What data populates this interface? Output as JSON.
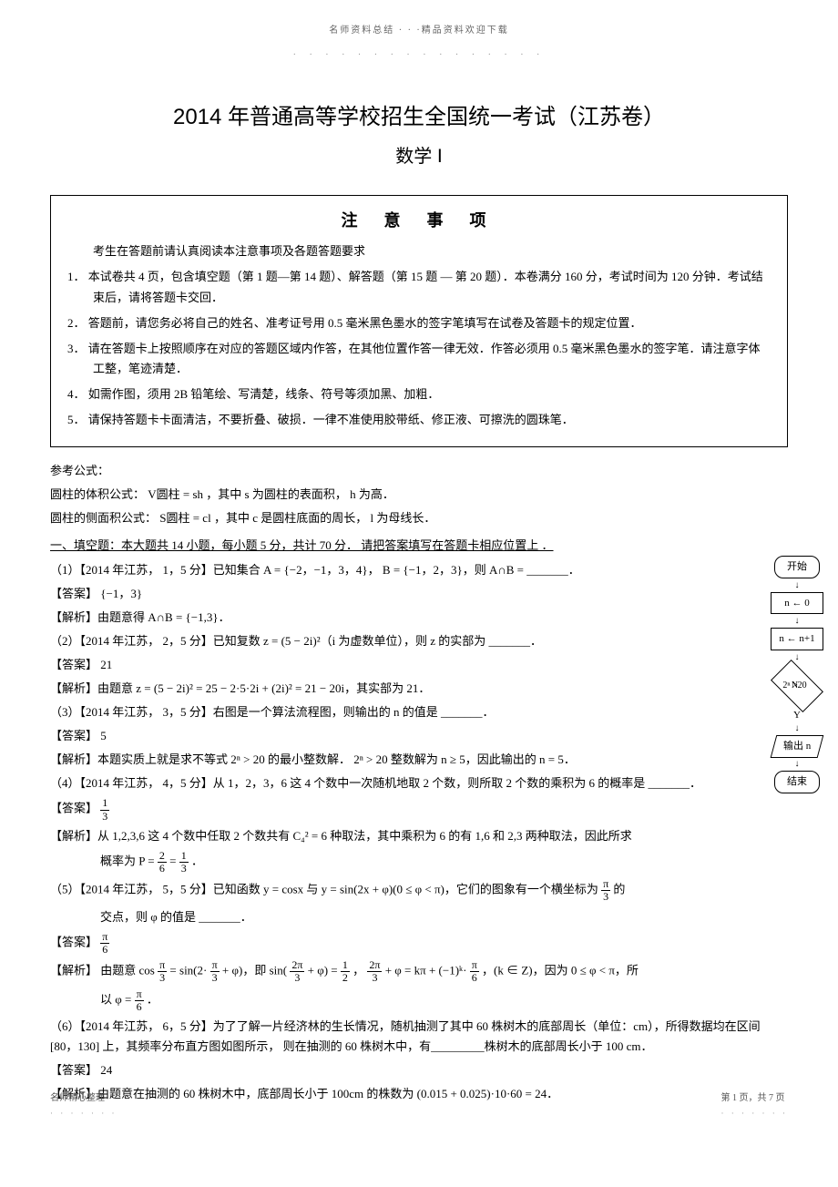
{
  "top_header": "名师资料总结 · · ·精品资料欢迎下载",
  "main_title": "2014 年普通高等学校招生全国统一考试（江苏卷）",
  "subtitle": "数学 Ⅰ",
  "notice": {
    "title": "注 意 事 项",
    "sub": "考生在答题前请认真阅读本注意事项及各题答题要求",
    "items": [
      "1． 本试卷共 4 页，包含填空题（第 1 题—第 14 题）、解答题（第 15 题 — 第 20 题）．本卷满分 160 分，考试时间为 120 分钟．考试结束后，请将答题卡交回．",
      "2． 答题前，请您务必将自己的姓名、准考证号用  0.5 毫米黑色墨水的签字笔填写在试卷及答题卡的规定位置．",
      "3． 请在答题卡上按照顺序在对应的答题区域内作答，在其他位置作答一律无效．作答必须用  0.5 毫米黑色墨水的签字笔．请注意字体工整，笔迹清楚．",
      "4． 如需作图，须用 2B 铅笔绘、写清楚，线条、符号等须加黑、加粗．",
      "5． 请保持答题卡卡面清洁，不要折叠、破损．一律不准使用胶带纸、修正液、可擦洗的圆珠笔．"
    ]
  },
  "formulas": {
    "header": "参考公式：",
    "line1": "圆柱的体积公式： V圆柱 = sh ，其中 s 为圆柱的表面积， h 为高．",
    "line2": "圆柱的侧面积公式： S圆柱 = cl ，其中 c 是圆柱底面的周长， l 为母线长．"
  },
  "section1": "一、填空题：本大题共 14 小题，每小题 5 分，共计 70 分． 请把答案填写在答题卡相应位置上 ．",
  "q1": {
    "text": "（1）【2014 年江苏， 1，5 分】已知集合 A = {−2，−1，3，4}， B = {−1，2，3}，则 A∩B = _______．",
    "answer_label": "【答案】",
    "answer": "{−1，3}",
    "analysis_label": "【解析】",
    "analysis": "由题意得 A∩B = {−1,3}．"
  },
  "q2": {
    "text": "（2）【2014 年江苏， 2，5 分】已知复数 z = (5 − 2i)²（i 为虚数单位），则 z 的实部为 _______．",
    "answer_label": "【答案】",
    "answer": "21",
    "analysis_label": "【解析】",
    "analysis": "由题意 z = (5 − 2i)² = 25 − 2·5·2i + (2i)² = 21 − 20i，其实部为 21．"
  },
  "q3": {
    "text": "（3）【2014 年江苏， 3，5 分】右图是一个算法流程图，则输出的 n 的值是 _______．",
    "answer_label": "【答案】",
    "answer": "5",
    "analysis_label": "【解析】",
    "analysis": "本题实质上就是求不等式 2ⁿ > 20 的最小整数解． 2ⁿ > 20 整数解为 n ≥ 5，因此输出的 n = 5．"
  },
  "q4": {
    "text": "（4）【2014 年江苏， 4，5 分】从 1，2，3，6 这 4 个数中一次随机地取 2 个数，则所取 2 个数的乘积为 6 的概率是 _______．",
    "answer_label": "【答案】",
    "answer_frac_num": "1",
    "answer_frac_den": "3",
    "analysis_label": "【解析】",
    "analysis_pre": "从 1,2,3,6 这 4 个数中任取 2 个数共有 C₄² = 6 种取法，其中乘积为 6 的有 1,6 和 2,3 两种取法，因此所求",
    "analysis_post_pre": "概率为 P = ",
    "frac2_num": "2",
    "frac2_den": "6",
    "eq": " = ",
    "frac3_num": "1",
    "frac3_den": "3",
    "period": "．"
  },
  "q5": {
    "text_pre": "（5）【2014 年江苏， 5，5 分】已知函数 y = cosx 与 y = sin(2x + φ)(0 ≤ φ < π)，它们的图象有一个横坐标为 ",
    "frac_num": "π",
    "frac_den": "3",
    "text_post": " 的",
    "line2": "交点，则 φ 的值是 _______．",
    "answer_label": "【答案】",
    "ans_num": "π",
    "ans_den": "6",
    "analysis_label": "【解析】",
    "ana_pre": "由题意 cos",
    "f1n": "π",
    "f1d": "3",
    "ana_mid1": " = sin(2·",
    "f2n": "π",
    "f2d": "3",
    "ana_mid2": " + φ)，即 sin(",
    "f3n": "2π",
    "f3d": "3",
    "ana_mid3": " + φ) = ",
    "f4n": "1",
    "f4d": "2",
    "ana_mid4": "，",
    "f5n": "2π",
    "f5d": "3",
    "ana_mid5": " + φ = kπ + (−1)ᵏ·",
    "f6n": "π",
    "f6d": "6",
    "ana_mid6": "，(k ∈ Z)，因为 0 ≤ φ < π，所",
    "ana_line2_pre": "以 φ = ",
    "f7n": "π",
    "f7d": "6",
    "ana_line2_post": "．"
  },
  "q6": {
    "text": "（6）【2014 年江苏， 6，5 分】为了了解一片经济林的生长情况，随机抽测了其中  60 株树木的底部周长（单位：cm），所得数据均在区间 [80，130] 上，其频率分布直方图如图所示， 则在抽测的 60 株树木中，有_________株树木的底部周长小于 100 cm．",
    "answer_label": "【答案】",
    "answer": "24",
    "analysis_label": "【解析】",
    "analysis": "由题意在抽测的 60 株树木中，底部周长小于 100cm 的株数为 (0.015 + 0.025)·10·60 = 24．"
  },
  "flowchart": {
    "start": "开始",
    "p1": "n ← 0",
    "p2": "n ← n+1",
    "cond": "2ⁿ >20",
    "n_label": "N",
    "y_label": "Y",
    "output": "输出 n",
    "end": "结束"
  },
  "footer": {
    "left": "名师精心整理",
    "right": "第 1 页，共 7 页"
  }
}
